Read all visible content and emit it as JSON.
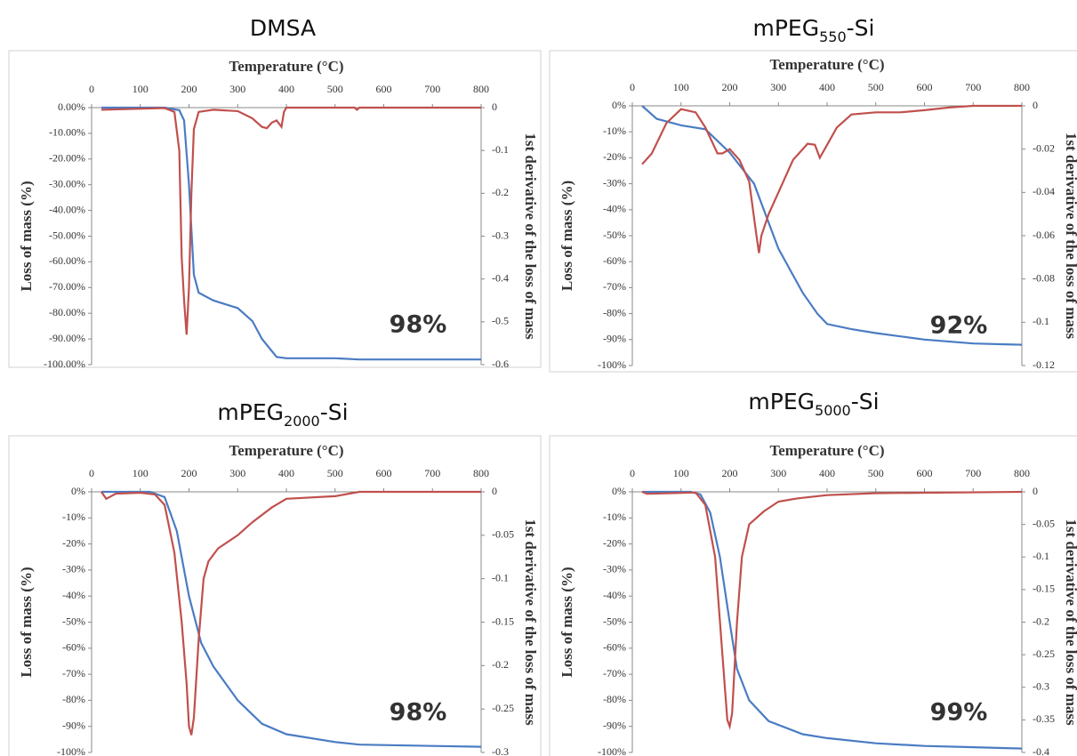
{
  "chart_data": [
    {
      "type": "line",
      "title": [
        "DMSA"
      ],
      "x_label": "Temperature (°C)",
      "y_label": "Loss of mass (%)",
      "y2_label": "1st derivative of the loss of mass",
      "annotation": "98%",
      "annotation_color": "#4a7cc3",
      "xlim": [
        0,
        800
      ],
      "xticks": [
        0,
        100,
        200,
        300,
        400,
        500,
        600,
        700,
        800
      ],
      "ylim": [
        -100,
        0
      ],
      "yticks": [
        {
          "value": 0,
          "label": "0.00%"
        },
        {
          "value": -10,
          "label": "-10.00%"
        },
        {
          "value": -20,
          "label": "-20.00%"
        },
        {
          "value": -30,
          "label": "-30.00%"
        },
        {
          "value": -40,
          "label": "-40.00%"
        },
        {
          "value": -50,
          "label": "-50.00%"
        },
        {
          "value": -60,
          "label": "-60.00%"
        },
        {
          "value": -70,
          "label": "-70.00%"
        },
        {
          "value": -80,
          "label": "-80.00%"
        },
        {
          "value": -90,
          "label": "-90.00%"
        },
        {
          "value": -100,
          "label": "-100.00%"
        }
      ],
      "y2lim": [
        -0.6,
        0
      ],
      "y2ticks": [
        0,
        -0.1,
        -0.2,
        -0.3,
        -0.4,
        -0.5,
        -0.6
      ],
      "series": [
        {
          "color": "#4a7cc3",
          "x": [
            20,
            150,
            180,
            190,
            200,
            210,
            220,
            250,
            300,
            330,
            350,
            380,
            400,
            500,
            550,
            800
          ],
          "values": [
            0,
            0,
            -1,
            -5,
            -30,
            -65,
            -72,
            -75,
            -78,
            -83,
            -90,
            -97,
            -97.5,
            -97.5,
            -98,
            -98
          ]
        },
        {
          "color": "#c0504d",
          "axis": "y2",
          "x": [
            20,
            150,
            170,
            180,
            185,
            190,
            195,
            200,
            205,
            210,
            220,
            250,
            300,
            330,
            350,
            360,
            370,
            380,
            390,
            395,
            400,
            540,
            545,
            550,
            800
          ],
          "values": [
            -0.005,
            -0.001,
            -0.01,
            -0.1,
            -0.35,
            -0.45,
            -0.53,
            -0.42,
            -0.2,
            -0.05,
            -0.01,
            -0.005,
            -0.008,
            -0.025,
            -0.045,
            -0.048,
            -0.035,
            -0.03,
            -0.045,
            -0.01,
            0,
            0,
            -0.005,
            0,
            0
          ]
        }
      ]
    },
    {
      "type": "line",
      "title": [
        "mPEG",
        "550",
        "-Si"
      ],
      "x_label": "Temperature (°C)",
      "y_label": "Loss of mass (%)",
      "y2_label": "1st derivative of the loss of mass",
      "annotation": "92%",
      "annotation_color": "#4a7cc3",
      "xlim": [
        0,
        800
      ],
      "xticks": [
        0,
        100,
        200,
        300,
        400,
        500,
        600,
        700,
        800
      ],
      "ylim": [
        -100,
        0
      ],
      "yticks": [
        {
          "value": 0,
          "label": "0%"
        },
        {
          "value": -10,
          "label": "-10%"
        },
        {
          "value": -20,
          "label": "-20%"
        },
        {
          "value": -30,
          "label": "-30%"
        },
        {
          "value": -40,
          "label": "-40%"
        },
        {
          "value": -50,
          "label": "-50%"
        },
        {
          "value": -60,
          "label": "-60%"
        },
        {
          "value": -70,
          "label": "-70%"
        },
        {
          "value": -80,
          "label": "-80%"
        },
        {
          "value": -90,
          "label": "-90%"
        },
        {
          "value": -100,
          "label": "-100%"
        }
      ],
      "y2lim": [
        -0.12,
        0
      ],
      "y2ticks": [
        0,
        -0.02,
        -0.04,
        -0.06,
        -0.08,
        -0.1,
        -0.12
      ],
      "series": [
        {
          "color": "#4a7cc3",
          "x": [
            20,
            50,
            100,
            150,
            200,
            250,
            280,
            300,
            350,
            380,
            400,
            450,
            500,
            600,
            700,
            800
          ],
          "values": [
            0,
            -5,
            -7.5,
            -9,
            -18,
            -30,
            -45,
            -55,
            -72,
            -80,
            -84,
            -86,
            -87.5,
            -90,
            -91.5,
            -92
          ]
        },
        {
          "color": "#c0504d",
          "axis": "y2",
          "x": [
            20,
            40,
            70,
            100,
            130,
            150,
            175,
            185,
            200,
            220,
            240,
            255,
            260,
            265,
            280,
            300,
            330,
            360,
            375,
            385,
            395,
            420,
            450,
            500,
            550,
            600,
            650,
            700,
            800
          ],
          "values": [
            -0.027,
            -0.022,
            -0.008,
            -0.0015,
            -0.003,
            -0.01,
            -0.022,
            -0.022,
            -0.02,
            -0.025,
            -0.035,
            -0.06,
            -0.068,
            -0.06,
            -0.05,
            -0.04,
            -0.025,
            -0.0175,
            -0.018,
            -0.024,
            -0.02,
            -0.01,
            -0.004,
            -0.003,
            -0.003,
            -0.002,
            -0.0008,
            0,
            0
          ]
        }
      ]
    },
    {
      "type": "line",
      "title": [
        "mPEG",
        "2000",
        "-Si"
      ],
      "x_label": "Temperature (°C)",
      "y_label": "Loss of mass (%)",
      "y2_label": "1st derivative of the loss of mass",
      "annotation": "98%",
      "annotation_color": "#4a7cc3",
      "xlim": [
        0,
        800
      ],
      "xticks": [
        0,
        100,
        200,
        300,
        400,
        500,
        600,
        700,
        800
      ],
      "ylim": [
        -100,
        0
      ],
      "yticks": [
        {
          "value": 0,
          "label": "0%"
        },
        {
          "value": -10,
          "label": "-10%"
        },
        {
          "value": -20,
          "label": "-20%"
        },
        {
          "value": -30,
          "label": "-30%"
        },
        {
          "value": -40,
          "label": "-40%"
        },
        {
          "value": -50,
          "label": "-50%"
        },
        {
          "value": -60,
          "label": "-60%"
        },
        {
          "value": -70,
          "label": "-70%"
        },
        {
          "value": -80,
          "label": "-80%"
        },
        {
          "value": -90,
          "label": "-90%"
        },
        {
          "value": -100,
          "label": "-100%"
        }
      ],
      "y2lim": [
        -0.3,
        0
      ],
      "y2ticks": [
        0,
        -0.05,
        -0.1,
        -0.15,
        -0.2,
        -0.25,
        -0.3
      ],
      "series": [
        {
          "color": "#4a7cc3",
          "x": [
            20,
            120,
            150,
            175,
            200,
            225,
            250,
            300,
            350,
            400,
            500,
            550,
            700,
            800
          ],
          "values": [
            0,
            0,
            -2,
            -15,
            -40,
            -58,
            -67,
            -80,
            -89,
            -93,
            -96,
            -97,
            -97.5,
            -97.8
          ]
        },
        {
          "color": "#c0504d",
          "axis": "y2",
          "x": [
            20,
            30,
            50,
            100,
            130,
            150,
            170,
            185,
            195,
            200,
            205,
            210,
            220,
            230,
            240,
            260,
            300,
            330,
            370,
            400,
            500,
            550,
            800
          ],
          "values": [
            0,
            -0.008,
            -0.002,
            -0.001,
            -0.003,
            -0.015,
            -0.07,
            -0.15,
            -0.22,
            -0.27,
            -0.28,
            -0.26,
            -0.17,
            -0.1,
            -0.08,
            -0.065,
            -0.05,
            -0.035,
            -0.018,
            -0.008,
            -0.005,
            0,
            0
          ]
        }
      ]
    },
    {
      "type": "line",
      "title": [
        "mPEG",
        "5000",
        "-Si"
      ],
      "x_label": "Temperature (°C)",
      "y_label": "Loss of mass (%)",
      "y2_label": "1st derivative of the loss of mass",
      "annotation": "99%",
      "annotation_color": "#4a7cc3",
      "xlim": [
        0,
        800
      ],
      "xticks": [
        0,
        100,
        200,
        300,
        400,
        500,
        600,
        700,
        800
      ],
      "ylim": [
        -100,
        0
      ],
      "yticks": [
        {
          "value": 0,
          "label": "0%"
        },
        {
          "value": -10,
          "label": "-10%"
        },
        {
          "value": -20,
          "label": "-20%"
        },
        {
          "value": -30,
          "label": "-30%"
        },
        {
          "value": -40,
          "label": "-40%"
        },
        {
          "value": -50,
          "label": "-50%"
        },
        {
          "value": -60,
          "label": "-60%"
        },
        {
          "value": -70,
          "label": "-70%"
        },
        {
          "value": -80,
          "label": "-80%"
        },
        {
          "value": -90,
          "label": "-90%"
        },
        {
          "value": -100,
          "label": "-100%"
        }
      ],
      "y2lim": [
        -0.4,
        0
      ],
      "y2ticks": [
        0,
        -0.05,
        -0.1,
        -0.15,
        -0.2,
        -0.25,
        -0.3,
        -0.35,
        -0.4
      ],
      "series": [
        {
          "color": "#4a7cc3",
          "x": [
            20,
            120,
            140,
            160,
            180,
            200,
            215,
            240,
            280,
            350,
            400,
            500,
            600,
            700,
            800
          ],
          "values": [
            0,
            0,
            -1,
            -8,
            -25,
            -50,
            -68,
            -80,
            -88,
            -93,
            -94.5,
            -96.5,
            -97.5,
            -98,
            -98.5
          ]
        },
        {
          "color": "#c0504d",
          "axis": "y2",
          "x": [
            20,
            30,
            130,
            150,
            170,
            185,
            195,
            200,
            205,
            215,
            225,
            240,
            270,
            300,
            340,
            400,
            500,
            800
          ],
          "values": [
            0,
            -0.003,
            -0.001,
            -0.02,
            -0.1,
            -0.25,
            -0.35,
            -0.36,
            -0.34,
            -0.2,
            -0.1,
            -0.05,
            -0.03,
            -0.015,
            -0.01,
            -0.005,
            -0.002,
            0
          ]
        }
      ]
    }
  ]
}
